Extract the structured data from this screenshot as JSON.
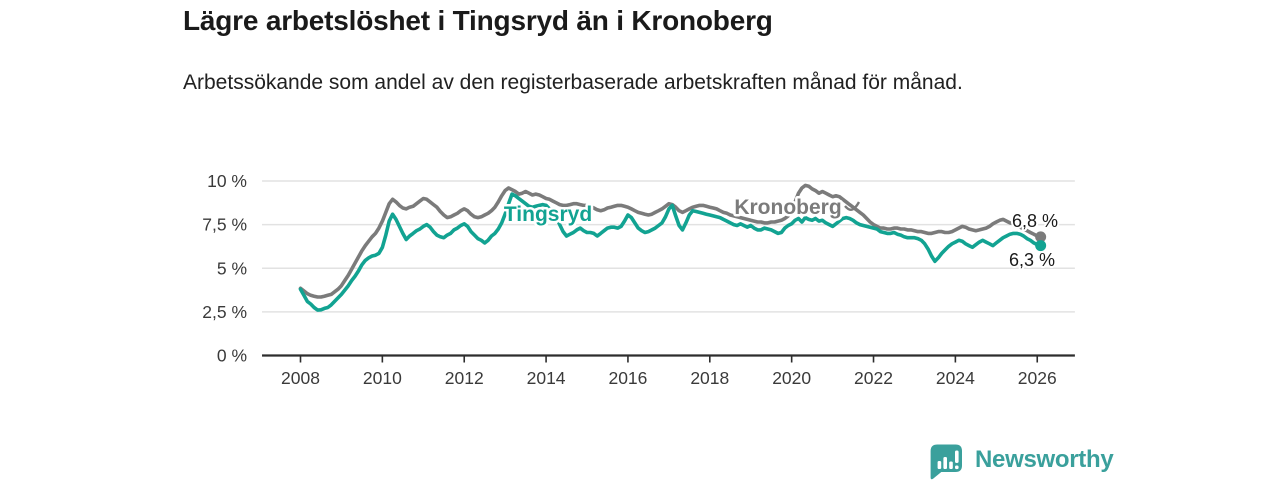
{
  "header": {
    "title": "Lägre arbetslöshet i Tingsryd än i Kronoberg",
    "subtitle": "Arbetssökande som andel av den registerbaserade arbetskraften månad för månad."
  },
  "branding": {
    "name": "Newsworthy",
    "logo_icon": "bar-chart-speech-bubble-icon",
    "brand_color": "#3aa09c"
  },
  "chart_data": {
    "type": "line",
    "title": "Lägre arbetslöshet i Tingsryd än i Kronoberg",
    "xlabel": "",
    "ylabel": "",
    "grid": "horizontal",
    "legend_position": "inline-labels",
    "x_axis": {
      "start_year": 2008,
      "points_per_year": 12,
      "tick_labels": [
        "2008",
        "2010",
        "2012",
        "2014",
        "2016",
        "2018",
        "2020",
        "2022",
        "2024",
        "2026"
      ],
      "range_years": [
        2007.06,
        2026.92
      ]
    },
    "y_axis": {
      "range": [
        0,
        10.4
      ],
      "ticks": [
        {
          "value": 0,
          "label": "0 %"
        },
        {
          "value": 2.5,
          "label": "2,5 %"
        },
        {
          "value": 5,
          "label": "5 %"
        },
        {
          "value": 7.5,
          "label": "7,5 %"
        },
        {
          "value": 10,
          "label": "10 %"
        }
      ]
    },
    "series": [
      {
        "name": "Kronoberg",
        "color": "#7b7b7b",
        "end_value": 6.8,
        "end_value_label": "6,8 %",
        "values": [
          3.85,
          3.7,
          3.55,
          3.45,
          3.4,
          3.35,
          3.35,
          3.4,
          3.45,
          3.5,
          3.65,
          3.8,
          4.0,
          4.3,
          4.6,
          4.95,
          5.3,
          5.65,
          6.0,
          6.3,
          6.55,
          6.8,
          7.0,
          7.3,
          7.7,
          8.2,
          8.7,
          8.95,
          8.8,
          8.6,
          8.45,
          8.4,
          8.5,
          8.55,
          8.7,
          8.85,
          9.0,
          8.95,
          8.8,
          8.65,
          8.5,
          8.25,
          8.05,
          7.9,
          7.95,
          8.05,
          8.15,
          8.3,
          8.4,
          8.3,
          8.1,
          7.95,
          7.9,
          7.95,
          8.05,
          8.15,
          8.3,
          8.5,
          8.8,
          9.15,
          9.45,
          9.6,
          9.5,
          9.4,
          9.25,
          9.3,
          9.4,
          9.3,
          9.2,
          9.25,
          9.2,
          9.1,
          9.0,
          8.95,
          8.85,
          8.75,
          8.65,
          8.6,
          8.6,
          8.65,
          8.7,
          8.7,
          8.65,
          8.6,
          8.6,
          8.55,
          8.45,
          8.35,
          8.3,
          8.35,
          8.45,
          8.5,
          8.55,
          8.6,
          8.6,
          8.55,
          8.5,
          8.4,
          8.3,
          8.2,
          8.15,
          8.1,
          8.05,
          8.1,
          8.2,
          8.3,
          8.4,
          8.55,
          8.7,
          8.65,
          8.5,
          8.3,
          8.2,
          8.3,
          8.4,
          8.5,
          8.55,
          8.6,
          8.6,
          8.55,
          8.5,
          8.45,
          8.4,
          8.3,
          8.2,
          8.15,
          8.05,
          8.0,
          7.95,
          7.9,
          7.85,
          7.8,
          7.75,
          7.7,
          7.65,
          7.65,
          7.6,
          7.6,
          7.65,
          7.65,
          7.7,
          7.75,
          7.85,
          8.0,
          8.3,
          8.8,
          9.3,
          9.6,
          9.75,
          9.7,
          9.55,
          9.45,
          9.3,
          9.4,
          9.3,
          9.2,
          9.1,
          9.15,
          9.1,
          8.95,
          8.8,
          8.65,
          8.5,
          8.35,
          8.2,
          8.05,
          7.85,
          7.65,
          7.5,
          7.4,
          7.3,
          7.3,
          7.25,
          7.25,
          7.3,
          7.3,
          7.25,
          7.25,
          7.2,
          7.2,
          7.15,
          7.1,
          7.1,
          7.05,
          7.0,
          7.0,
          7.05,
          7.1,
          7.1,
          7.05,
          7.05,
          7.1,
          7.2,
          7.3,
          7.4,
          7.35,
          7.25,
          7.2,
          7.15,
          7.2,
          7.25,
          7.3,
          7.4,
          7.55,
          7.65,
          7.75,
          7.8,
          7.7,
          7.6,
          7.55,
          7.45,
          7.35,
          7.25,
          7.15,
          7.05,
          6.95,
          6.85,
          6.8
        ]
      },
      {
        "name": "Tingsryd",
        "color": "#12a392",
        "end_value": 6.3,
        "end_value_label": "6,3 %",
        "values": [
          3.8,
          3.45,
          3.1,
          2.95,
          2.75,
          2.6,
          2.62,
          2.7,
          2.75,
          2.9,
          3.1,
          3.3,
          3.5,
          3.75,
          4.0,
          4.3,
          4.55,
          4.85,
          5.2,
          5.45,
          5.6,
          5.7,
          5.75,
          5.85,
          6.2,
          6.9,
          7.7,
          8.1,
          7.8,
          7.4,
          7.0,
          6.65,
          6.85,
          7.0,
          7.15,
          7.25,
          7.4,
          7.5,
          7.35,
          7.1,
          6.9,
          6.8,
          6.75,
          6.9,
          7.0,
          7.2,
          7.3,
          7.45,
          7.55,
          7.4,
          7.1,
          6.9,
          6.7,
          6.6,
          6.45,
          6.6,
          6.85,
          7.0,
          7.25,
          7.6,
          8.1,
          8.7,
          9.25,
          9.15,
          9.0,
          8.85,
          8.7,
          8.55,
          8.5,
          8.55,
          8.6,
          8.65,
          8.6,
          8.4,
          8.2,
          7.95,
          7.5,
          7.1,
          6.85,
          6.95,
          7.05,
          7.2,
          7.3,
          7.15,
          7.05,
          7.05,
          7.0,
          6.85,
          7.0,
          7.15,
          7.3,
          7.35,
          7.35,
          7.3,
          7.4,
          7.7,
          8.05,
          7.9,
          7.6,
          7.3,
          7.15,
          7.05,
          7.1,
          7.2,
          7.3,
          7.45,
          7.6,
          7.95,
          8.4,
          8.6,
          8.0,
          7.45,
          7.2,
          7.6,
          8.05,
          8.3,
          8.25,
          8.2,
          8.15,
          8.1,
          8.05,
          8.0,
          7.95,
          7.9,
          7.8,
          7.7,
          7.6,
          7.5,
          7.45,
          7.55,
          7.45,
          7.35,
          7.45,
          7.3,
          7.2,
          7.2,
          7.3,
          7.25,
          7.2,
          7.1,
          7.0,
          7.05,
          7.3,
          7.45,
          7.55,
          7.75,
          7.85,
          7.65,
          7.9,
          7.8,
          7.75,
          7.85,
          7.7,
          7.75,
          7.6,
          7.5,
          7.4,
          7.55,
          7.7,
          7.85,
          7.9,
          7.85,
          7.75,
          7.6,
          7.5,
          7.45,
          7.4,
          7.35,
          7.3,
          7.25,
          7.1,
          7.05,
          7.0,
          7.0,
          7.05,
          6.95,
          6.9,
          6.8,
          6.75,
          6.75,
          6.75,
          6.7,
          6.6,
          6.4,
          6.1,
          5.7,
          5.4,
          5.6,
          5.85,
          6.05,
          6.25,
          6.4,
          6.5,
          6.6,
          6.55,
          6.4,
          6.3,
          6.2,
          6.35,
          6.5,
          6.6,
          6.5,
          6.4,
          6.3,
          6.45,
          6.6,
          6.75,
          6.85,
          6.95,
          7.0,
          7.0,
          6.95,
          6.85,
          6.7,
          6.6,
          6.45,
          6.35,
          6.3
        ]
      }
    ]
  }
}
